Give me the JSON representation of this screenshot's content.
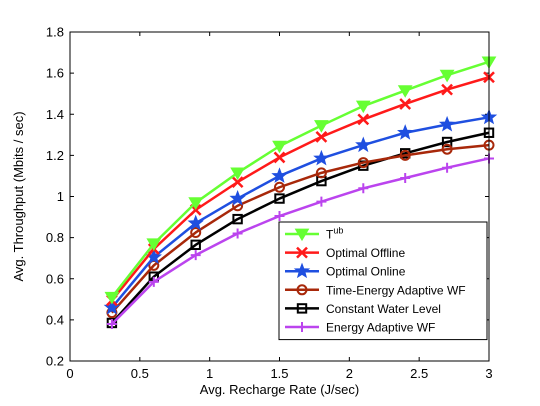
{
  "chart_data": {
    "type": "line",
    "xlabel": "Avg. Recharge Rate (J/sec)",
    "ylabel": "Avg. Throughput (Mbits / sec)",
    "xlim": [
      0,
      3
    ],
    "ylim": [
      0.2,
      1.8
    ],
    "x_ticks": [
      "0",
      "0.5",
      "1",
      "1.5",
      "2",
      "2.5",
      "3"
    ],
    "y_ticks": [
      "0.2",
      "0.4",
      "0.6",
      "0.8",
      "1",
      "1.2",
      "1.4",
      "1.6",
      "1.8"
    ],
    "grid": false,
    "legend_position": "bottom-right",
    "x": [
      0.3,
      0.6,
      0.9,
      1.2,
      1.5,
      1.8,
      2.1,
      2.4,
      2.7,
      3.0
    ],
    "series": [
      {
        "name": "T",
        "name_sup": "ub",
        "color": "#66ff33",
        "marker": "triangle-down",
        "values": [
          0.51,
          0.77,
          0.97,
          1.115,
          1.245,
          1.345,
          1.44,
          1.515,
          1.59,
          1.655
        ]
      },
      {
        "name": "Optimal Offline",
        "color": "#ff1a1a",
        "marker": "x",
        "values": [
          0.495,
          0.745,
          0.935,
          1.07,
          1.19,
          1.29,
          1.375,
          1.45,
          1.52,
          1.58
        ]
      },
      {
        "name": "Optimal Online",
        "color": "#1f4fe0",
        "marker": "star",
        "values": [
          0.46,
          0.705,
          0.87,
          0.99,
          1.1,
          1.185,
          1.25,
          1.31,
          1.35,
          1.385
        ]
      },
      {
        "name": "Time-Energy Adaptive WF",
        "color": "#a8280a",
        "marker": "circle",
        "values": [
          0.435,
          0.665,
          0.825,
          0.955,
          1.045,
          1.115,
          1.165,
          1.2,
          1.23,
          1.25
        ]
      },
      {
        "name": "Constant Water Level",
        "color": "#000000",
        "marker": "square",
        "values": [
          0.385,
          0.61,
          0.765,
          0.89,
          0.99,
          1.075,
          1.15,
          1.21,
          1.265,
          1.31
        ]
      },
      {
        "name": "Energy Adaptive WF",
        "color": "#bb44ee",
        "marker": "plus",
        "values": [
          0.38,
          0.585,
          0.715,
          0.82,
          0.905,
          0.975,
          1.04,
          1.09,
          1.14,
          1.185
        ]
      }
    ]
  }
}
